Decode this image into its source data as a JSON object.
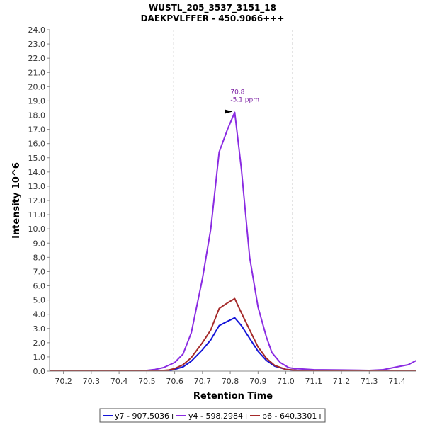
{
  "chart_data": {
    "type": "line",
    "title": "WUSTL_205_3537_3151_18",
    "subtitle": "DAEKPVLFFER - 450.9066+++",
    "xlabel": "Retention Time",
    "ylabel": "Intensity 10^6",
    "xlim": [
      70.15,
      71.47
    ],
    "ylim": [
      0,
      24
    ],
    "xticks": [
      "70.2",
      "70.3",
      "70.4",
      "70.5",
      "70.6",
      "70.7",
      "70.8",
      "70.9",
      "71.0",
      "71.1",
      "71.2",
      "71.3",
      "71.4"
    ],
    "yticks": [
      "0.0",
      "1.0",
      "2.0",
      "3.0",
      "4.0",
      "5.0",
      "6.0",
      "7.0",
      "8.0",
      "9.0",
      "10.0",
      "11.0",
      "12.0",
      "13.0",
      "14.0",
      "15.0",
      "16.0",
      "17.0",
      "18.0",
      "19.0",
      "20.0",
      "21.0",
      "22.0",
      "23.0",
      "24.0"
    ],
    "grid": false,
    "boundaries": [
      70.597,
      71.025
    ],
    "annotation": {
      "lines": [
        "70.8",
        "-5.1 ppm"
      ],
      "x": 70.816,
      "y": 18.2,
      "color": "#7b1fa2"
    },
    "series": [
      {
        "name": "y7 - 907.5036+",
        "color": "#1515d8",
        "x": [
          70.15,
          70.3,
          70.45,
          70.5,
          70.55,
          70.58,
          70.6,
          70.63,
          70.66,
          70.7,
          70.73,
          70.76,
          70.79,
          70.816,
          70.84,
          70.87,
          70.9,
          70.93,
          70.96,
          71.0,
          71.05,
          71.1,
          71.2,
          71.3,
          71.4,
          71.47
        ],
        "values": [
          0.0,
          0.0,
          0.0,
          0.0,
          0.02,
          0.05,
          0.12,
          0.3,
          0.7,
          1.5,
          2.2,
          3.2,
          3.5,
          3.75,
          3.2,
          2.3,
          1.4,
          0.75,
          0.35,
          0.12,
          0.04,
          0.02,
          0.02,
          0.02,
          0.02,
          0.03
        ]
      },
      {
        "name": "y4 - 598.2984+",
        "color": "#8a2be2",
        "x": [
          70.15,
          70.3,
          70.45,
          70.5,
          70.53,
          70.56,
          70.6,
          70.63,
          70.66,
          70.7,
          70.73,
          70.76,
          70.79,
          70.816,
          70.84,
          70.87,
          70.9,
          70.93,
          70.95,
          70.98,
          71.01,
          71.03,
          71.06,
          71.1,
          71.2,
          71.3,
          71.35,
          71.4,
          71.44,
          71.47
        ],
        "values": [
          0.0,
          0.0,
          0.0,
          0.05,
          0.12,
          0.25,
          0.6,
          1.2,
          2.7,
          6.5,
          10.0,
          15.4,
          17.0,
          18.2,
          14.2,
          8.0,
          4.5,
          2.4,
          1.3,
          0.6,
          0.25,
          0.18,
          0.15,
          0.1,
          0.08,
          0.05,
          0.1,
          0.3,
          0.45,
          0.75
        ]
      },
      {
        "name": "b6 - 640.3301+",
        "color": "#a52a2a",
        "x": [
          70.15,
          70.3,
          70.45,
          70.5,
          70.55,
          70.58,
          70.6,
          70.63,
          70.66,
          70.7,
          70.73,
          70.76,
          70.79,
          70.816,
          70.84,
          70.87,
          70.9,
          70.93,
          70.96,
          71.0,
          71.05,
          71.1,
          71.2,
          71.3,
          71.4,
          71.47
        ],
        "values": [
          0.0,
          0.0,
          0.0,
          0.0,
          0.03,
          0.08,
          0.18,
          0.45,
          0.95,
          2.0,
          2.9,
          4.4,
          4.8,
          5.1,
          4.1,
          2.9,
          1.7,
          0.9,
          0.4,
          0.12,
          0.04,
          0.02,
          0.02,
          0.02,
          0.02,
          0.03
        ]
      }
    ]
  }
}
